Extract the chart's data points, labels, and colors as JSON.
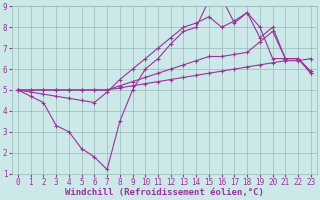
{
  "background_color": "#cce8e8",
  "grid_color": "#99bbbb",
  "line_color": "#993399",
  "xlim": [
    -0.5,
    23.5
  ],
  "ylim": [
    1,
    9
  ],
  "xticks": [
    0,
    1,
    2,
    3,
    4,
    5,
    6,
    7,
    8,
    9,
    10,
    11,
    12,
    13,
    14,
    15,
    16,
    17,
    18,
    19,
    20,
    21,
    22,
    23
  ],
  "yticks": [
    1,
    2,
    3,
    4,
    5,
    6,
    7,
    8,
    9
  ],
  "xlabel": "Windchill (Refroidissement éolien,°C)",
  "lines": [
    {
      "x": [
        0,
        1,
        2,
        3,
        4,
        5,
        6,
        7,
        8,
        9,
        10,
        11,
        12,
        13,
        14,
        15,
        16,
        17,
        18,
        19,
        20,
        21,
        22,
        23
      ],
      "y": [
        5.0,
        4.7,
        4.4,
        3.3,
        3.0,
        2.2,
        1.8,
        1.2,
        3.5,
        5.0,
        6.0,
        6.5,
        7.2,
        7.8,
        8.0,
        9.3,
        9.4,
        8.2,
        8.7,
        8.0,
        6.5,
        6.5,
        6.5,
        5.8
      ]
    },
    {
      "x": [
        0,
        1,
        2,
        3,
        4,
        5,
        6,
        7,
        8,
        9,
        10,
        11,
        12,
        13,
        14,
        15,
        16,
        17,
        18,
        19,
        20,
        21,
        22,
        23
      ],
      "y": [
        5.0,
        4.9,
        4.8,
        4.7,
        4.6,
        4.5,
        4.4,
        4.9,
        5.5,
        6.0,
        6.5,
        7.0,
        7.5,
        8.0,
        8.2,
        8.5,
        8.0,
        8.3,
        8.7,
        7.5,
        8.0,
        6.5,
        6.5,
        5.8
      ]
    },
    {
      "x": [
        0,
        1,
        2,
        3,
        4,
        5,
        6,
        7,
        8,
        9,
        10,
        11,
        12,
        13,
        14,
        15,
        16,
        17,
        18,
        19,
        20,
        21,
        22,
        23
      ],
      "y": [
        5.0,
        5.0,
        5.0,
        5.0,
        5.0,
        5.0,
        5.0,
        5.0,
        5.2,
        5.4,
        5.6,
        5.8,
        6.0,
        6.2,
        6.4,
        6.6,
        6.6,
        6.7,
        6.8,
        7.3,
        7.8,
        6.5,
        6.5,
        5.9
      ]
    },
    {
      "x": [
        0,
        1,
        2,
        3,
        4,
        5,
        6,
        7,
        8,
        9,
        10,
        11,
        12,
        13,
        14,
        15,
        16,
        17,
        18,
        19,
        20,
        21,
        22,
        23
      ],
      "y": [
        5.0,
        5.0,
        5.0,
        5.0,
        5.0,
        5.0,
        5.0,
        5.0,
        5.1,
        5.2,
        5.3,
        5.4,
        5.5,
        5.6,
        5.7,
        5.8,
        5.9,
        6.0,
        6.1,
        6.2,
        6.3,
        6.4,
        6.4,
        6.5
      ]
    }
  ],
  "marker": "+",
  "marker_size": 3.5,
  "line_width": 0.8,
  "tick_fontsize": 5.5,
  "label_fontsize": 6.5,
  "label_fontfamily": "monospace"
}
